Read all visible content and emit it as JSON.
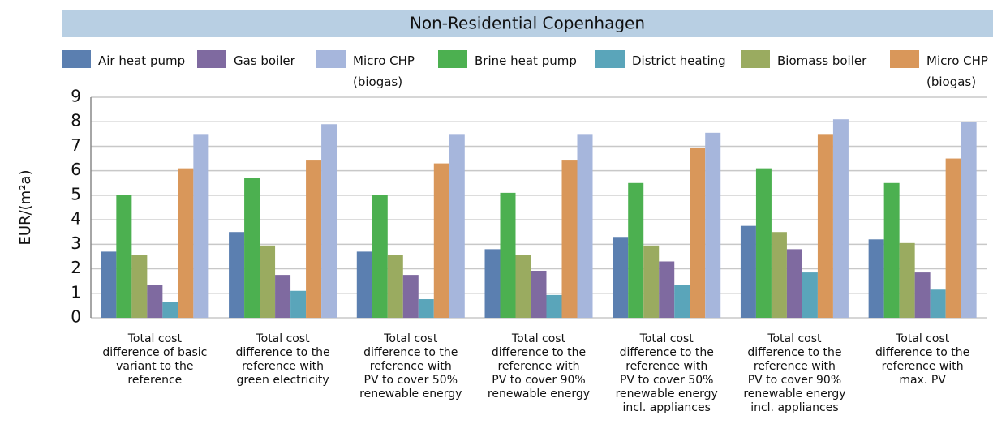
{
  "chart_data": {
    "type": "bar",
    "title": "Non-Residential Copenhagen",
    "y_label": "EUR/(m²a)",
    "categories": [
      "Total cost\ndifference of basic\nvariant to the\nreference",
      "Total cost\ndifference to the\nreference with\ngreen electricity",
      "Total cost\ndifference to the\nreference with\nPV to cover 50%\nrenewable energy",
      "Total cost\ndifference to the\nreference with\nPV to cover 90%\nrenewable energy",
      "Total cost\ndifference to the\nreference with\nPV to cover 50%\nrenewable energy\nincl. appliances",
      "Total cost\ndifference to the\nreference with\nPV to cover 90%\nrenewable energy\nincl. appliances",
      "Total cost\ndifference to the\nreference with\nmax. PV"
    ],
    "series": [
      {
        "name": "Air heat pump",
        "color": "#5b7fb0",
        "values": [
          2.7,
          3.5,
          2.7,
          2.8,
          3.3,
          3.75,
          3.2
        ]
      },
      {
        "name": "Brine heat pump",
        "color": "#4cb050",
        "values": [
          5.0,
          5.7,
          5.0,
          5.1,
          5.5,
          6.1,
          5.5
        ]
      },
      {
        "name": "Biomass boiler",
        "color": "#9aab60",
        "values": [
          2.55,
          2.95,
          2.55,
          2.55,
          2.95,
          3.5,
          3.05
        ]
      },
      {
        "name": "Gas boiler",
        "color": "#7f6aa0",
        "values": [
          1.35,
          1.75,
          1.75,
          1.92,
          2.3,
          2.8,
          1.85
        ]
      },
      {
        "name": "District heating",
        "color": "#5aa5ba",
        "values": [
          0.66,
          1.1,
          0.76,
          0.93,
          1.35,
          1.85,
          1.15
        ]
      },
      {
        "name": "Micro CHP\n(biogas)",
        "color": "#d9975a",
        "values": [
          6.1,
          6.45,
          6.3,
          6.45,
          6.95,
          7.5,
          6.5
        ]
      },
      {
        "name": "Micro CHP\n(biogas)",
        "color": "#a6b6dc",
        "values": [
          7.5,
          7.9,
          7.5,
          7.5,
          7.55,
          8.1,
          8.0
        ]
      }
    ],
    "ylim": [
      0,
      9
    ],
    "yticks": [
      0,
      1,
      2,
      3,
      4,
      5,
      6,
      7,
      8,
      9
    ],
    "grid": true
  }
}
